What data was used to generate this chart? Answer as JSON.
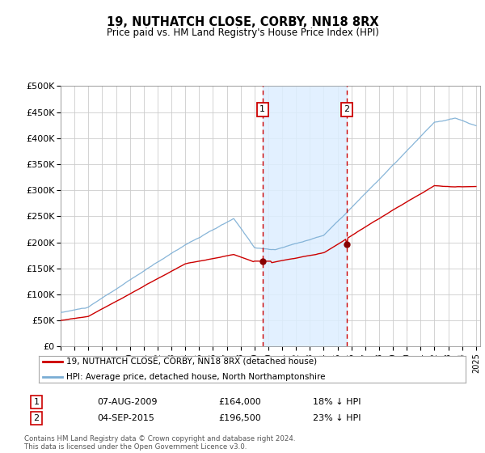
{
  "title": "19, NUTHATCH CLOSE, CORBY, NN18 8RX",
  "subtitle": "Price paid vs. HM Land Registry's House Price Index (HPI)",
  "ylim": [
    0,
    500000
  ],
  "xlim_start": 1995.0,
  "xlim_end": 2025.3,
  "transaction1": {
    "date_num": 2009.58,
    "price": 164000,
    "label": "1",
    "date_str": "07-AUG-2009",
    "pct": "18% ↓ HPI"
  },
  "transaction2": {
    "date_num": 2015.67,
    "price": 196500,
    "label": "2",
    "date_str": "04-SEP-2015",
    "pct": "23% ↓ HPI"
  },
  "line_color_red": "#cc0000",
  "line_color_blue": "#7aadd4",
  "shade_color": "#ddeeff",
  "dashed_color": "#cc0000",
  "legend_label_red": "19, NUTHATCH CLOSE, CORBY, NN18 8RX (detached house)",
  "legend_label_blue": "HPI: Average price, detached house, North Northamptonshire",
  "footnote": "Contains HM Land Registry data © Crown copyright and database right 2024.\nThis data is licensed under the Open Government Licence v3.0.",
  "table_rows": [
    {
      "num": "1",
      "date": "07-AUG-2009",
      "price": "£164,000",
      "pct": "18% ↓ HPI"
    },
    {
      "num": "2",
      "date": "04-SEP-2015",
      "price": "£196,500",
      "pct": "23% ↓ HPI"
    }
  ],
  "background_color": "#ffffff",
  "grid_color": "#cccccc"
}
